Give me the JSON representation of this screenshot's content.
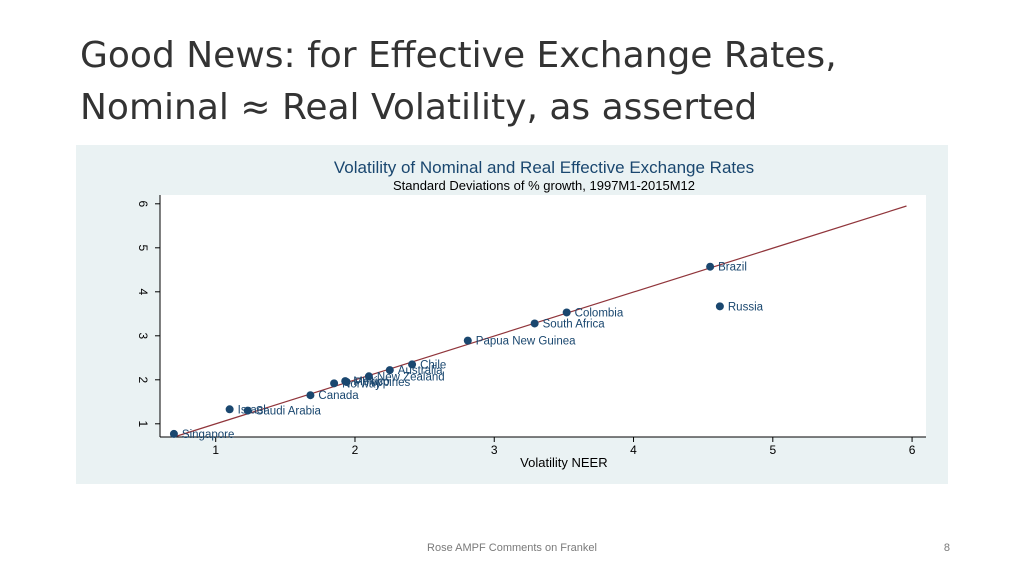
{
  "slide": {
    "title_line1": "Good News: for Effective Exchange Rates,",
    "title_line2": "Nominal ≈ Real Volatility, as asserted",
    "footer": "Rose AMPF Comments on Frankel",
    "page_number": "8"
  },
  "chart_data": {
    "type": "scatter",
    "title": "Volatility of Nominal and Real Effective Exchange Rates",
    "subtitle": "Standard Deviations of % growth, 1997M1-2015M12",
    "xlabel": "Volatility NEER",
    "ylabel": "",
    "xlim": [
      0.6,
      6.1
    ],
    "ylim": [
      0.7,
      6.2
    ],
    "xticks": [
      1,
      2,
      3,
      4,
      5,
      6
    ],
    "yticks": [
      1,
      2,
      3,
      4,
      5,
      6
    ],
    "grid": false,
    "fit_line": {
      "x": [
        0.7,
        5.96
      ],
      "y": [
        0.7,
        5.95
      ]
    },
    "colors": {
      "panel_bg": "#eaf2f3",
      "plot_bg": "#ffffff",
      "title": "#1a476f",
      "marker": "#1a476f",
      "fit_line": "#90353b"
    },
    "points": [
      {
        "label": "Singapore",
        "x": 0.7,
        "y": 0.77
      },
      {
        "label": "Israel",
        "x": 1.1,
        "y": 1.33
      },
      {
        "label": "Saudi Arabia",
        "x": 1.23,
        "y": 1.3
      },
      {
        "label": "Canada",
        "x": 1.68,
        "y": 1.65
      },
      {
        "label": "Norway",
        "x": 1.85,
        "y": 1.92
      },
      {
        "label": "Mexico",
        "x": 1.93,
        "y": 1.97
      },
      {
        "label": "Philippines",
        "x": 1.94,
        "y": 1.95
      },
      {
        "label": "New Zealand",
        "x": 2.1,
        "y": 2.08
      },
      {
        "label": "Australia",
        "x": 2.25,
        "y": 2.22
      },
      {
        "label": "Chile",
        "x": 2.41,
        "y": 2.35
      },
      {
        "label": "Papua New Guinea",
        "x": 2.81,
        "y": 2.89
      },
      {
        "label": "South Africa",
        "x": 3.29,
        "y": 3.28
      },
      {
        "label": "Colombia",
        "x": 3.52,
        "y": 3.53
      },
      {
        "label": "Brazil",
        "x": 4.55,
        "y": 4.57
      },
      {
        "label": "Russia",
        "x": 4.62,
        "y": 3.67
      }
    ]
  }
}
